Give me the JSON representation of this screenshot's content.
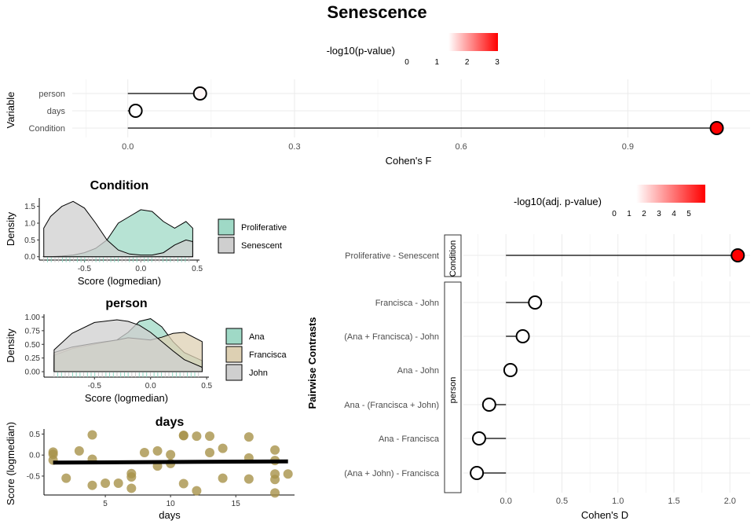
{
  "title": "Senescence",
  "colors": {
    "significant": "#ff0000",
    "nonsignificant": "#ffffff",
    "proliferative": "#9fd9c6",
    "senescent": "#cfcfcf",
    "ana": "#9fd9c6",
    "francisca": "#ddd0b3",
    "john": "#cfcfcf",
    "days_points": "#a8924a",
    "rug": "#8ed6c1"
  },
  "chart_data": [
    {
      "id": "effect_f",
      "type": "lollipop",
      "legend": {
        "title": "-log10(p-value)",
        "ticks": [
          "0",
          "1",
          "2",
          "3"
        ],
        "range": [
          0,
          3
        ]
      },
      "categories": [
        "person",
        "days",
        "Condition"
      ],
      "values": [
        0.13,
        0.014,
        1.06
      ],
      "pvalue_log": [
        0.1,
        0.0,
        3.0
      ],
      "xlabel": "Cohen's F",
      "ylabel": "Variable",
      "xlim": [
        -0.1,
        1.12
      ],
      "xticks": [
        "0.0",
        "0.3",
        "0.6",
        "0.9"
      ],
      "xtick_values": [
        0.0,
        0.3,
        0.6,
        0.9
      ]
    },
    {
      "id": "density_condition",
      "type": "area",
      "title": "Condition",
      "xlabel": "Score (logmedian)",
      "ylabel": "Density",
      "xlim": [
        -0.9,
        0.52
      ],
      "ylim": [
        -0.1,
        1.75
      ],
      "xticks": [
        "-0.5",
        "0.0",
        "0.5"
      ],
      "xtick_values": [
        -0.5,
        0.0,
        0.5
      ],
      "yticks": [
        "0.0",
        "0.5",
        "1.0",
        "1.5"
      ],
      "ytick_values": [
        0.0,
        0.5,
        1.0,
        1.5
      ],
      "x": [
        -0.86,
        -0.8,
        -0.7,
        -0.6,
        -0.5,
        -0.4,
        -0.3,
        -0.2,
        -0.1,
        0.0,
        0.1,
        0.2,
        0.3,
        0.4,
        0.46
      ],
      "series": [
        {
          "name": "Proliferative",
          "values": [
            0.0,
            0.0,
            0.02,
            0.05,
            0.12,
            0.25,
            0.5,
            1.0,
            1.2,
            1.4,
            1.35,
            1.05,
            0.85,
            1.05,
            0.85
          ]
        },
        {
          "name": "Senescent",
          "values": [
            0.85,
            1.2,
            1.5,
            1.65,
            1.45,
            1.0,
            0.5,
            0.2,
            0.08,
            0.05,
            0.05,
            0.12,
            0.35,
            0.5,
            0.45
          ]
        }
      ]
    },
    {
      "id": "density_person",
      "type": "area",
      "title": "person",
      "xlabel": "Score (logmedian)",
      "ylabel": "Density",
      "xlim": [
        -0.95,
        0.52
      ],
      "ylim": [
        -0.1,
        1.05
      ],
      "xticks": [
        "-0.5",
        "0.0",
        "0.5"
      ],
      "xtick_values": [
        -0.5,
        0.0,
        0.5
      ],
      "yticks": [
        "0.00",
        "0.25",
        "0.50",
        "0.75",
        "1.00"
      ],
      "ytick_values": [
        0.0,
        0.25,
        0.5,
        0.75,
        1.0
      ],
      "x": [
        -0.86,
        -0.7,
        -0.5,
        -0.3,
        -0.2,
        -0.1,
        0.0,
        0.1,
        0.2,
        0.3,
        0.46
      ],
      "series": [
        {
          "name": "Ana",
          "values": [
            0.3,
            0.42,
            0.5,
            0.58,
            0.72,
            0.92,
            0.97,
            0.82,
            0.55,
            0.35,
            0.2
          ]
        },
        {
          "name": "Francisca",
          "values": [
            0.35,
            0.45,
            0.52,
            0.58,
            0.62,
            0.6,
            0.58,
            0.63,
            0.7,
            0.72,
            0.55
          ]
        },
        {
          "name": "John",
          "values": [
            0.4,
            0.7,
            0.9,
            0.95,
            0.92,
            0.85,
            0.72,
            0.55,
            0.38,
            0.22,
            0.08
          ]
        }
      ]
    },
    {
      "id": "scatter_days",
      "type": "scatter",
      "title": "days",
      "xlabel": "days",
      "ylabel": "Score (logmedian)",
      "xlim": [
        0.3,
        19.5
      ],
      "ylim": [
        -0.95,
        0.62
      ],
      "xticks": [
        "5",
        "10",
        "15"
      ],
      "xtick_values": [
        5,
        10,
        15
      ],
      "yticks": [
        "0.5",
        "0.0",
        "-0.5"
      ],
      "ytick_values": [
        0.5,
        0.0,
        -0.5
      ],
      "points": [
        [
          1,
          0.07
        ],
        [
          1,
          0.02
        ],
        [
          1,
          -0.12
        ],
        [
          2,
          -0.55
        ],
        [
          3,
          0.1
        ],
        [
          4,
          0.48
        ],
        [
          4,
          -0.1
        ],
        [
          4,
          -0.72
        ],
        [
          5,
          -0.67
        ],
        [
          6,
          -0.67
        ],
        [
          7,
          -0.44
        ],
        [
          7,
          -0.52
        ],
        [
          7,
          -0.79
        ],
        [
          8,
          0.06
        ],
        [
          9,
          0.1
        ],
        [
          9,
          -0.26
        ],
        [
          10,
          -0.2
        ],
        [
          10,
          0.01
        ],
        [
          11,
          0.46
        ],
        [
          11,
          0.47
        ],
        [
          11,
          -0.68
        ],
        [
          12,
          0.45
        ],
        [
          12,
          -0.85
        ],
        [
          13,
          0.45
        ],
        [
          13,
          0.06
        ],
        [
          14,
          0.16
        ],
        [
          14,
          -0.55
        ],
        [
          16,
          0.43
        ],
        [
          16,
          -0.07
        ],
        [
          16,
          -0.57
        ],
        [
          18,
          0.12
        ],
        [
          18,
          -0.13
        ],
        [
          18,
          -0.45
        ],
        [
          18,
          -0.9
        ],
        [
          18,
          -0.58
        ],
        [
          19,
          -0.45
        ]
      ],
      "fit": [
        [
          1,
          -0.18
        ],
        [
          19,
          -0.15
        ]
      ]
    },
    {
      "id": "pairwise_d",
      "type": "lollipop",
      "legend": {
        "title": "-log10(adj. p-value)",
        "ticks": [
          "0",
          "1",
          "2",
          "3",
          "4",
          "5"
        ],
        "range": [
          0,
          5.8
        ]
      },
      "ylabel": "Pairwise Contrasts",
      "xlabel": "Cohen's D",
      "xlim": [
        -0.38,
        2.18
      ],
      "xticks": [
        "0.0",
        "0.5",
        "1.0",
        "1.5",
        "2.0"
      ],
      "xtick_values": [
        0.0,
        0.5,
        1.0,
        1.5,
        2.0
      ],
      "facets": [
        {
          "label": "Condition",
          "categories": [
            "Proliferative - Senescent"
          ],
          "values": [
            2.07
          ],
          "pvalue_log": [
            5.8
          ]
        },
        {
          "label": "person",
          "categories": [
            "Francisca - John",
            "(Ana + Francisca) - John",
            "Ana - John",
            "Ana - (Francisca + John)",
            "Ana - Francisca",
            "(Ana + John) - Francisca"
          ],
          "values": [
            0.26,
            0.15,
            0.04,
            -0.15,
            -0.24,
            -0.26
          ],
          "pvalue_log": [
            0.0,
            0.0,
            0.0,
            0.0,
            0.0,
            0.0
          ]
        }
      ]
    }
  ]
}
